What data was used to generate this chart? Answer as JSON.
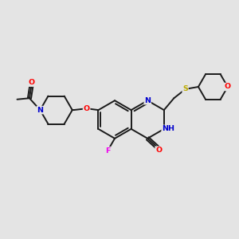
{
  "bg_color": "#e4e4e4",
  "bond_color": "#1a1a1a",
  "bond_width": 1.4,
  "atom_colors": {
    "O": "#ff0000",
    "N": "#0000cd",
    "F": "#ee00ee",
    "S": "#bbaa00",
    "H": "#008888",
    "C": "#1a1a1a"
  },
  "font_size": 6.8
}
